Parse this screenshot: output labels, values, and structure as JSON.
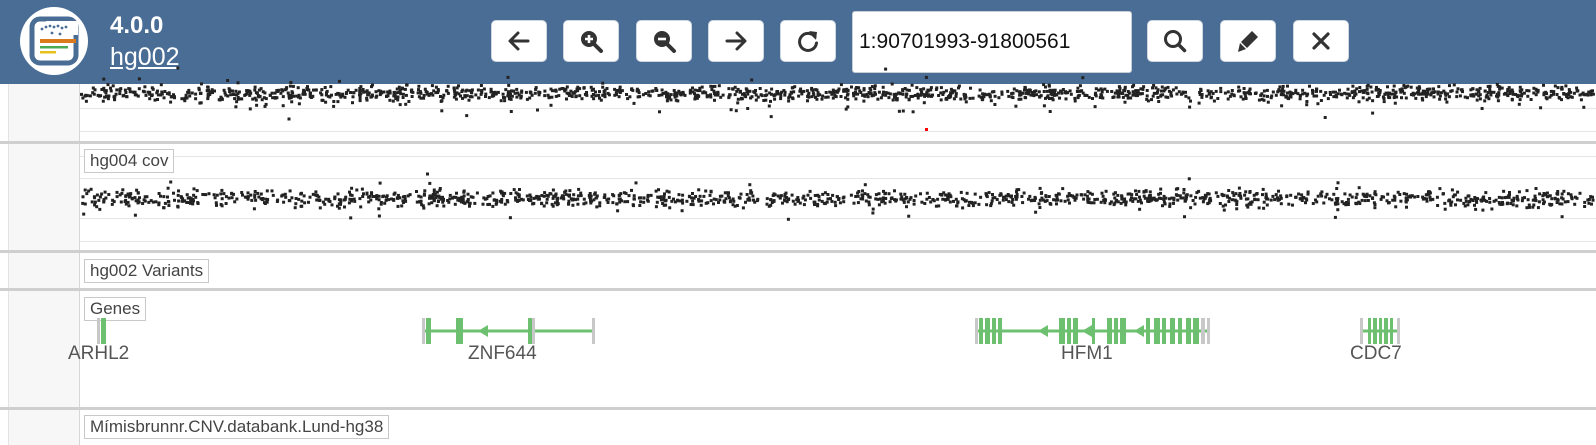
{
  "header": {
    "version": "4.0.0",
    "case_name": "hg002",
    "locus": "1:90701993-91800561",
    "logo_icon": "gens-logo-icon",
    "buttons": [
      {
        "name": "pan-left-button",
        "icon": "arrow-left-icon"
      },
      {
        "name": "zoom-in-button",
        "icon": "zoom-in-icon"
      },
      {
        "name": "zoom-out-button",
        "icon": "zoom-out-icon"
      },
      {
        "name": "pan-right-button",
        "icon": "arrow-right-icon"
      },
      {
        "name": "reset-button",
        "icon": "redo-icon"
      },
      {
        "name": "search-button",
        "icon": "search-icon"
      },
      {
        "name": "annotate-button",
        "icon": "pen-icon"
      },
      {
        "name": "close-button",
        "icon": "close-icon"
      }
    ]
  },
  "tracks": {
    "cov_label": "hg004 cov",
    "variants_label": "hg002 Variants",
    "genes_label": "Genes",
    "annotation_label": "Mímisbrunnr.CNV.databank.Lund-hg38"
  },
  "genes": [
    {
      "name": "ARHL2",
      "label": "ARHL2"
    },
    {
      "name": "ZNF644",
      "label": "ZNF644"
    },
    {
      "name": "HFM1",
      "label": "HFM1"
    },
    {
      "name": "CDC7",
      "label": "CDC7"
    }
  ],
  "colors": {
    "topbar": "#4a6d96",
    "gene": "#6cc070",
    "gene_utr": "#c8c8c8",
    "dots": "#222222",
    "highlight": "#ff0000"
  }
}
